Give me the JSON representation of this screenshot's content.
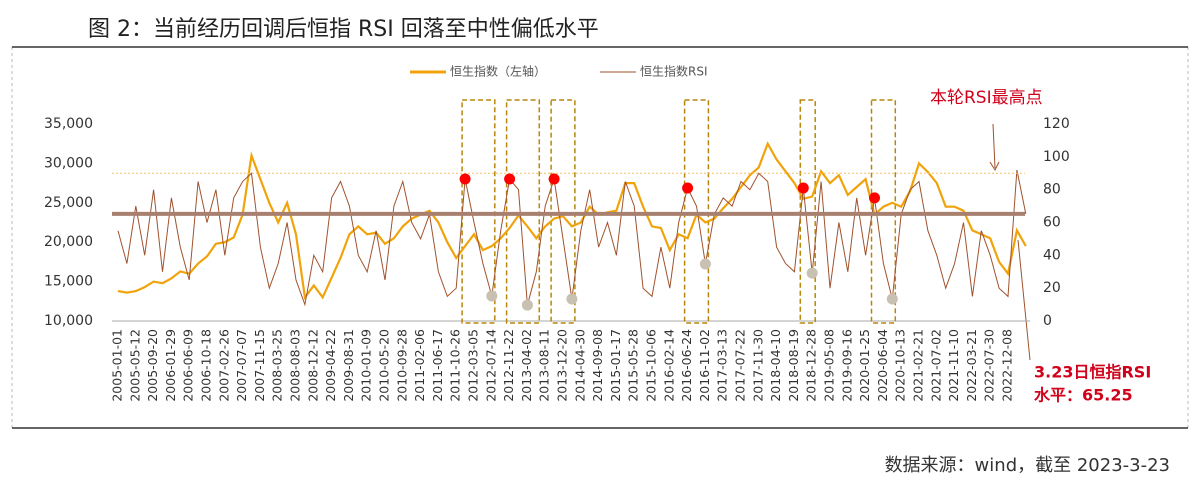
{
  "chart_data": {
    "type": "line",
    "title": "图 2：当前经历回调后恒指 RSI 回落至中性偏低水平",
    "source": "数据来源：wind，截至 2023-3-23",
    "annotation_peak": "本轮RSI最高点",
    "annotation_current": [
      "3.23日恒指RSI",
      "水平：65.25"
    ],
    "categories": [
      "2005-01-01",
      null,
      "2005-05-12",
      null,
      "2005-09-20",
      null,
      "2006-01-29",
      null,
      "2006-06-09",
      null,
      "2006-10-18",
      null,
      "2007-02-26",
      null,
      "2007-07-07",
      null,
      "2007-11-15",
      null,
      "2008-03-25",
      null,
      "2008-08-03",
      null,
      "2008-12-12",
      null,
      "2009-04-22",
      null,
      "2009-08-31",
      null,
      "2010-01-09",
      null,
      "2010-05-20",
      null,
      "2010-09-28",
      null,
      "2011-02-06",
      null,
      "2011-06-17",
      null,
      "2011-10-26",
      null,
      "2012-03-05",
      null,
      "2012-07-14",
      null,
      "2012-11-22",
      null,
      "2013-04-02",
      null,
      "2013-08-11",
      null,
      "2013-12-20",
      null,
      "2014-04-30",
      null,
      "2014-09-08",
      null,
      "2015-01-17",
      null,
      "2015-05-28",
      null,
      "2015-10-06",
      null,
      "2016-02-14",
      null,
      "2016-06-24",
      null,
      "2016-11-02",
      null,
      "2017-03-13",
      null,
      "2017-07-22",
      null,
      "2017-11-30",
      null,
      "2018-04-10",
      null,
      "2018-08-19",
      null,
      "2018-12-28",
      null,
      "2019-05-08",
      null,
      "2019-09-16",
      null,
      "2020-01-25",
      null,
      "2020-06-04",
      null,
      "2020-10-13",
      null,
      "2021-02-21",
      null,
      "2021-07-02",
      null,
      "2021-11-10",
      null,
      "2022-03-21",
      null,
      "2022-07-30",
      null,
      "2022-12-08",
      null,
      null
    ],
    "series": [
      {
        "name": "恒生指数（左轴）",
        "color": "#f0a30a",
        "values": [
          13800,
          13600,
          13800,
          14300,
          15000,
          14800,
          15400,
          16300,
          16000,
          17300,
          18200,
          19800,
          20000,
          20600,
          23500,
          31000,
          28000,
          25000,
          22500,
          25000,
          21000,
          13000,
          14500,
          13000,
          15500,
          18000,
          21000,
          22000,
          21000,
          21200,
          19800,
          20500,
          22000,
          23000,
          23500,
          24000,
          22500,
          20000,
          18000,
          19500,
          21000,
          19000,
          19500,
          20500,
          21800,
          23400,
          22000,
          20500,
          22000,
          23000,
          23300,
          22000,
          22500,
          24500,
          23500,
          23800,
          24000,
          27500,
          27500,
          24500,
          22000,
          21800,
          19000,
          21000,
          20500,
          23500,
          22500,
          23000,
          24300,
          25500,
          27000,
          28500,
          29500,
          32500,
          30500,
          29000,
          27500,
          25500,
          25800,
          29000,
          27500,
          28500,
          26000,
          27000,
          28000,
          23500,
          24500,
          25000,
          24500,
          26500,
          30000,
          28900,
          27500,
          24500,
          24500,
          24000,
          21500,
          21000,
          20500,
          17500,
          16000,
          21500,
          19500
        ]
      },
      {
        "name": "恒生指数RSI",
        "color": "#a0522d",
        "axis": "y2",
        "values": [
          55,
          35,
          70,
          40,
          80,
          30,
          75,
          45,
          25,
          85,
          60,
          80,
          40,
          75,
          85,
          90,
          45,
          20,
          35,
          60,
          25,
          10,
          40,
          30,
          75,
          85,
          70,
          40,
          30,
          55,
          25,
          70,
          85,
          60,
          50,
          65,
          30,
          15,
          20,
          86.5,
          60,
          35,
          15.2,
          55,
          86.5,
          80,
          9.7,
          30,
          70,
          86.5,
          50,
          13.4,
          55,
          80,
          45,
          60,
          40,
          85,
          70,
          20,
          15,
          45,
          20,
          60,
          81,
          70,
          34.7,
          65,
          75,
          70,
          85,
          80,
          90,
          85,
          45,
          35,
          30,
          81,
          29.2,
          85,
          20,
          60,
          30,
          75,
          40,
          75,
          35,
          13.4,
          65,
          80,
          85,
          55,
          40,
          20,
          35,
          60,
          15,
          55,
          40,
          20,
          15,
          92,
          65.25
        ]
      }
    ],
    "markers": [
      {
        "color": "#ff0000",
        "axis": "y2",
        "values": [
          null,
          null,
          null,
          null,
          null,
          null,
          null,
          null,
          null,
          null,
          null,
          null,
          null,
          null,
          null,
          null,
          null,
          null,
          null,
          null,
          null,
          null,
          null,
          null,
          null,
          null,
          null,
          null,
          null,
          null,
          null,
          null,
          null,
          null,
          null,
          null,
          null,
          null,
          null,
          86.5,
          null,
          null,
          null,
          null,
          86.5,
          null,
          null,
          null,
          null,
          86.5,
          null,
          null,
          null,
          null,
          null,
          null,
          null,
          null,
          null,
          null,
          null,
          null,
          null,
          null,
          81,
          null,
          null,
          null,
          null,
          null,
          null,
          null,
          null,
          null,
          null,
          null,
          null,
          81,
          null,
          null,
          null,
          null,
          null,
          null,
          null,
          75,
          null,
          null,
          null,
          null,
          null,
          null,
          null,
          null,
          null,
          null,
          null,
          null,
          null,
          null,
          null,
          null,
          null
        ]
      },
      {
        "color": "#c8c0b0",
        "axis": "y2",
        "values": [
          null,
          null,
          null,
          null,
          null,
          null,
          null,
          null,
          null,
          null,
          null,
          null,
          null,
          null,
          null,
          null,
          null,
          null,
          null,
          null,
          null,
          null,
          null,
          null,
          null,
          null,
          null,
          null,
          null,
          null,
          null,
          null,
          null,
          null,
          null,
          null,
          null,
          null,
          null,
          null,
          null,
          null,
          15.2,
          null,
          null,
          null,
          9.7,
          null,
          null,
          null,
          null,
          13.4,
          null,
          null,
          null,
          null,
          null,
          null,
          null,
          null,
          null,
          null,
          null,
          null,
          null,
          null,
          34.7,
          null,
          null,
          null,
          null,
          null,
          null,
          null,
          null,
          null,
          null,
          null,
          29.2,
          null,
          null,
          null,
          null,
          null,
          null,
          null,
          null,
          13.4,
          null,
          null,
          null,
          null,
          null,
          null,
          null,
          null,
          null,
          null,
          null,
          null,
          null,
          null,
          null
        ]
      }
    ],
    "reference_lines": [
      {
        "axis": "y2",
        "value": 90,
        "color": "#f5c060"
      },
      {
        "axis": "y2",
        "value": 65.25,
        "color": "#a88070"
      }
    ],
    "ylim": [
      10000,
      35000
    ],
    "yticks": [
      {
        "value": 10000,
        "label": "10,000"
      },
      {
        "value": 15000,
        "label": "15,000"
      },
      {
        "value": 20000,
        "label": "20,000"
      },
      {
        "value": 25000,
        "label": "25,000"
      },
      {
        "value": 30000,
        "label": "30,000"
      },
      {
        "value": 35000,
        "label": "35,000"
      }
    ],
    "y2lim": [
      0,
      120
    ],
    "y2ticks": [
      0,
      20,
      40,
      60,
      80,
      100,
      120
    ],
    "grid": false
  }
}
